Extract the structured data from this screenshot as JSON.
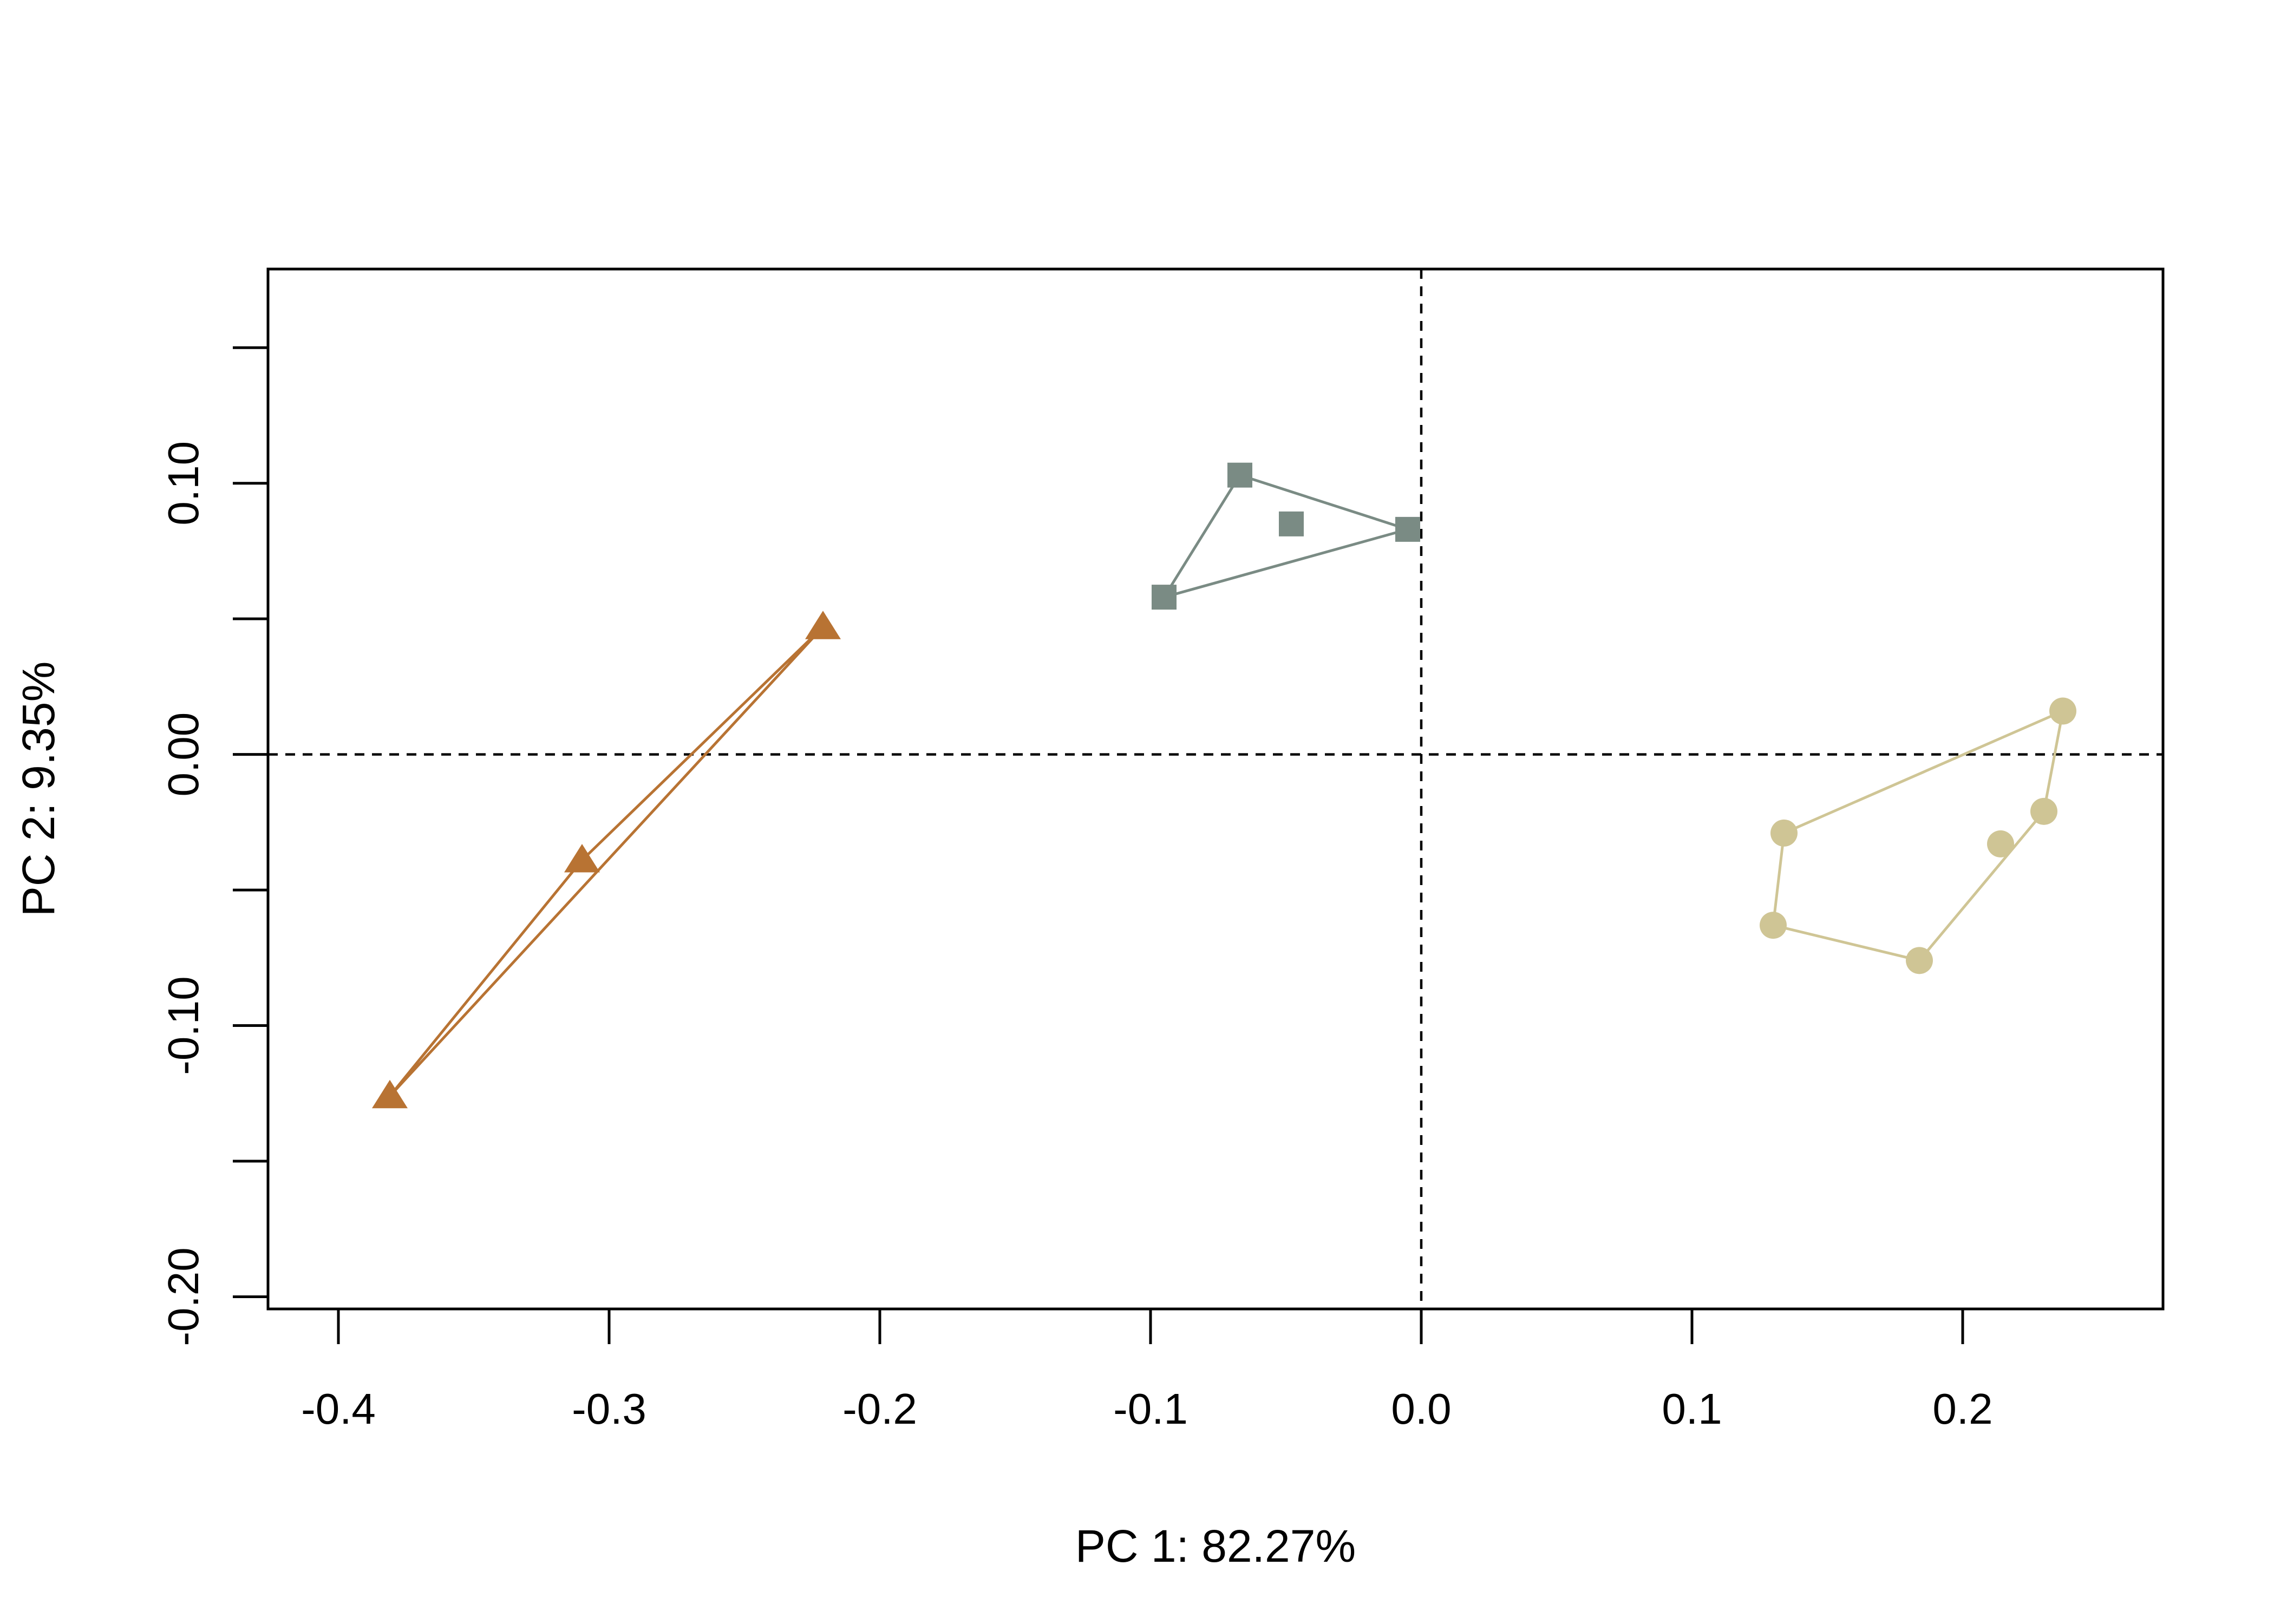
{
  "chart_data": {
    "type": "scatter",
    "title": "",
    "xlabel": "PC 1: 82.27%",
    "ylabel": "PC 2: 9.35%",
    "xlim": [
      -0.426,
      0.274
    ],
    "ylim": [
      -0.2045,
      0.179
    ],
    "x_ticks": [
      -0.4,
      -0.3,
      -0.2,
      -0.1,
      0.0,
      0.1,
      0.2
    ],
    "x_tick_labels": [
      "-0.4",
      "-0.3",
      "-0.2",
      "-0.1",
      "0.0",
      "0.1",
      "0.2"
    ],
    "y_ticks": [
      -0.2,
      -0.15,
      -0.1,
      -0.05,
      0.0,
      0.05,
      0.1,
      0.15
    ],
    "y_tick_labels": [
      "-0.20",
      "",
      "-0.10",
      "",
      "0.00",
      "",
      "0.10",
      ""
    ],
    "reference_lines": {
      "x": 0.0,
      "y": 0.0,
      "style": "dashed"
    },
    "grid": false,
    "legend": "none",
    "series": [
      {
        "marker": "triangle",
        "color": "#B87333",
        "points": [
          {
            "x": -0.221,
            "y": 0.047
          },
          {
            "x": -0.31,
            "y": -0.039
          },
          {
            "x": -0.381,
            "y": -0.126
          }
        ],
        "hull": [
          [
            -0.221,
            0.047
          ],
          [
            -0.31,
            -0.039
          ],
          [
            -0.381,
            -0.126
          ],
          [
            -0.221,
            0.047
          ]
        ]
      },
      {
        "marker": "square",
        "color": "#7A8B84",
        "points": [
          {
            "x": -0.067,
            "y": 0.103
          },
          {
            "x": -0.048,
            "y": 0.085
          },
          {
            "x": -0.005,
            "y": 0.083
          },
          {
            "x": -0.095,
            "y": 0.058
          }
        ],
        "hull": [
          [
            -0.067,
            0.103
          ],
          [
            -0.005,
            0.083
          ],
          [
            -0.095,
            0.058
          ],
          [
            -0.067,
            0.103
          ]
        ]
      },
      {
        "marker": "circle",
        "color": "#CFC595",
        "points": [
          {
            "x": 0.237,
            "y": 0.016
          },
          {
            "x": 0.23,
            "y": -0.021
          },
          {
            "x": 0.214,
            "y": -0.033
          },
          {
            "x": 0.134,
            "y": -0.029
          },
          {
            "x": 0.13,
            "y": -0.063
          },
          {
            "x": 0.184,
            "y": -0.076
          }
        ],
        "hull": [
          [
            0.237,
            0.016
          ],
          [
            0.134,
            -0.029
          ],
          [
            0.13,
            -0.063
          ],
          [
            0.184,
            -0.076
          ],
          [
            0.23,
            -0.021
          ],
          [
            0.237,
            0.016
          ]
        ]
      }
    ]
  }
}
